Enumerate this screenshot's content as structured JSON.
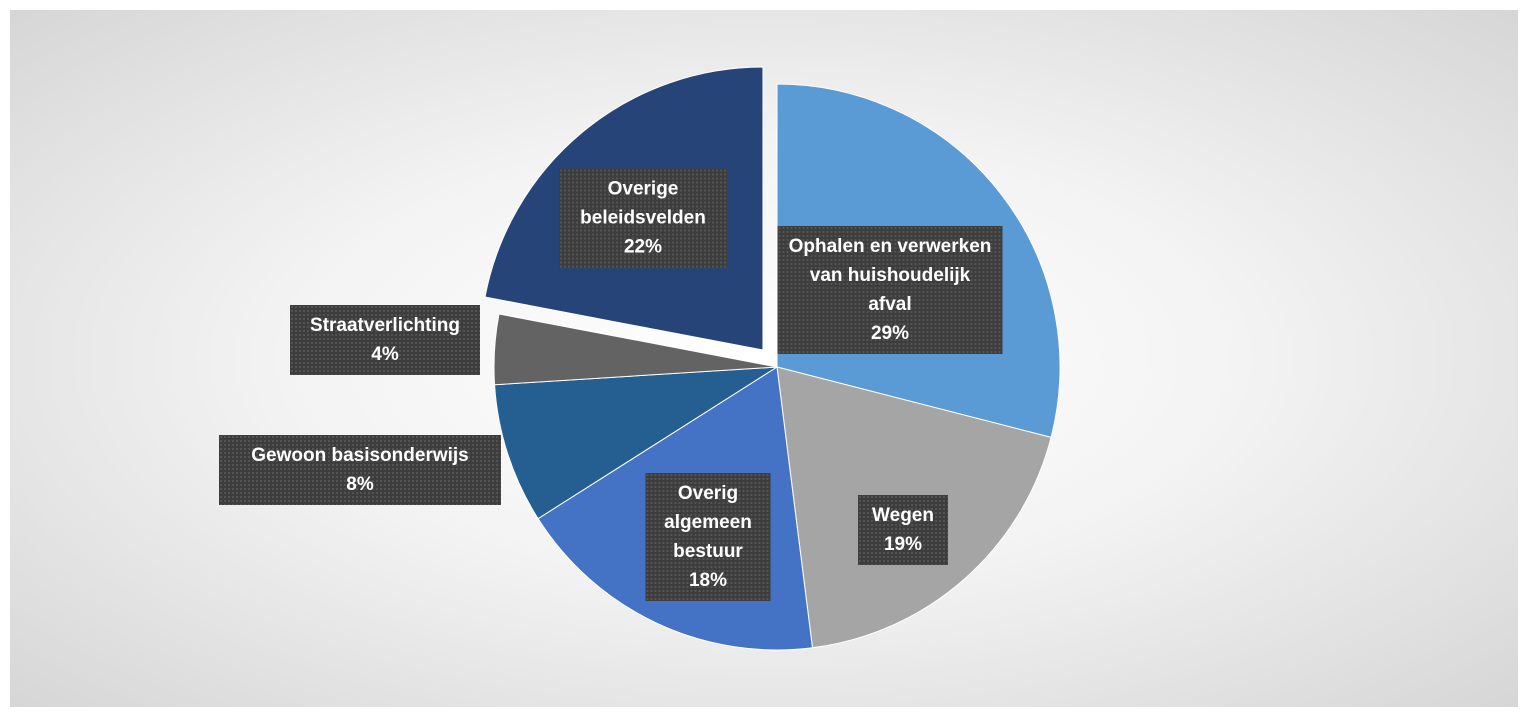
{
  "chart_data": {
    "type": "pie",
    "categories": [
      "Ophalen en verwerken van huishoudelijk afval",
      "Wegen",
      "Overig algemeen bestuur",
      "Gewoon basisonderwijs",
      "Straatverlichting",
      "Overige beleidsvelden"
    ],
    "values": [
      29,
      19,
      18,
      8,
      4,
      22
    ],
    "value_labels": [
      "29%",
      "19%",
      "18%",
      "8%",
      "4%",
      "22%"
    ],
    "colors": [
      "#5b9bd5",
      "#a5a5a5",
      "#4472c4",
      "#255e91",
      "#636363",
      "#264478"
    ],
    "explode": [
      false,
      false,
      false,
      false,
      false,
      true
    ]
  }
}
